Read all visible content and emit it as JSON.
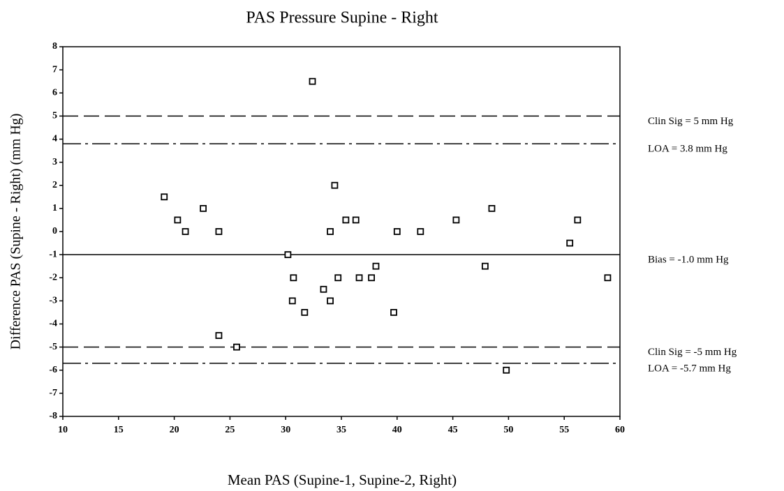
{
  "chart_data": {
    "type": "scatter",
    "title": "PAS Pressure Supine - Right",
    "x_label": "Mean PAS (Supine-1, Supine-2, Right)",
    "y_label": "Difference PAS (Supine - Right) (mm Hg)",
    "xlim": [
      10,
      60
    ],
    "xticks": [
      10,
      15,
      20,
      25,
      30,
      35,
      40,
      45,
      50,
      55,
      60
    ],
    "ylim": [
      -8,
      8
    ],
    "yticks": [
      -8,
      -7,
      -6,
      -5,
      -4,
      -3,
      -2,
      -1,
      0,
      1,
      2,
      3,
      4,
      5,
      6,
      7,
      8
    ],
    "color": "#000000",
    "x": [
      19.1,
      20.3,
      21.0,
      22.6,
      24.0,
      24.0,
      25.6,
      30.2,
      30.7,
      30.6,
      31.7,
      32.4,
      33.4,
      34.0,
      34.0,
      34.4,
      34.7,
      35.4,
      36.3,
      36.6,
      37.7,
      38.1,
      39.7,
      40.0,
      42.1,
      45.3,
      47.9,
      48.5,
      49.8,
      55.5,
      56.2,
      58.9
    ],
    "values": [
      1.5,
      0.5,
      0,
      1,
      0,
      -4.5,
      -5,
      -1,
      -2,
      -3,
      -3.5,
      6.5,
      -2.5,
      0,
      -3,
      2,
      -2,
      0.5,
      0.5,
      -2,
      -2,
      -1.5,
      -3.5,
      0,
      0,
      0.5,
      -1.5,
      1,
      -6,
      -0.5,
      0.5,
      -2
    ],
    "reference_lines": [
      {
        "value": 5,
        "label": "Clin Sig = 5 mm Hg",
        "style": "dashed"
      },
      {
        "value": 3.8,
        "label": "LOA = 3.8 mm Hg",
        "style": "dashdot"
      },
      {
        "value": -1.0,
        "label": "Bias = -1.0 mm Hg",
        "style": "solid"
      },
      {
        "value": -5,
        "label": "Clin Sig = -5 mm Hg",
        "style": "dashed"
      },
      {
        "value": -5.7,
        "label": "LOA = -5.7 mm Hg",
        "style": "dashdot"
      }
    ]
  }
}
